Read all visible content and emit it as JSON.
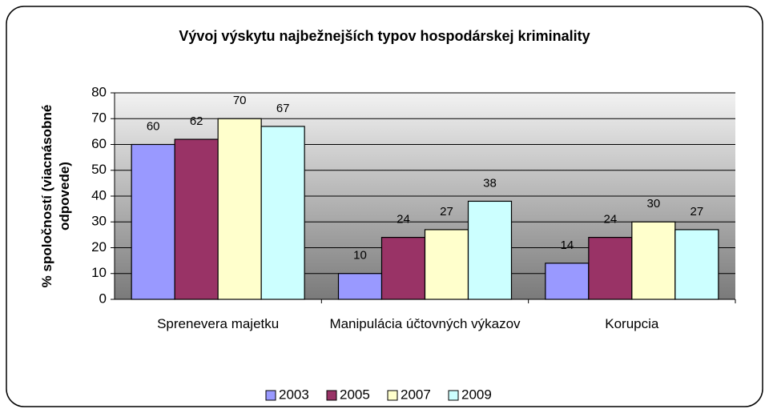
{
  "chart_data": {
    "type": "bar",
    "title": "Vývoj výskytu najbežnejších typov hospodárskej kriminality",
    "y_label": "% spoločností (viacnásobné odpovede)",
    "categories": [
      "Sprenevera majetku",
      "Manipulácia účtovných výkazov",
      "Korupcia"
    ],
    "series": [
      {
        "name": "2003",
        "color": "#9999ff",
        "values": [
          60,
          10,
          14
        ]
      },
      {
        "name": "2005",
        "color": "#993366",
        "values": [
          62,
          24,
          24
        ]
      },
      {
        "name": "2007",
        "color": "#ffffcc",
        "values": [
          70,
          27,
          30
        ]
      },
      {
        "name": "2009",
        "color": "#ccffff",
        "values": [
          67,
          38,
          27
        ]
      }
    ],
    "ylim": [
      0,
      80
    ],
    "yticks": [
      0,
      10,
      20,
      30,
      40,
      50,
      60,
      70,
      80
    ],
    "grid": true,
    "legend": "bottom"
  }
}
